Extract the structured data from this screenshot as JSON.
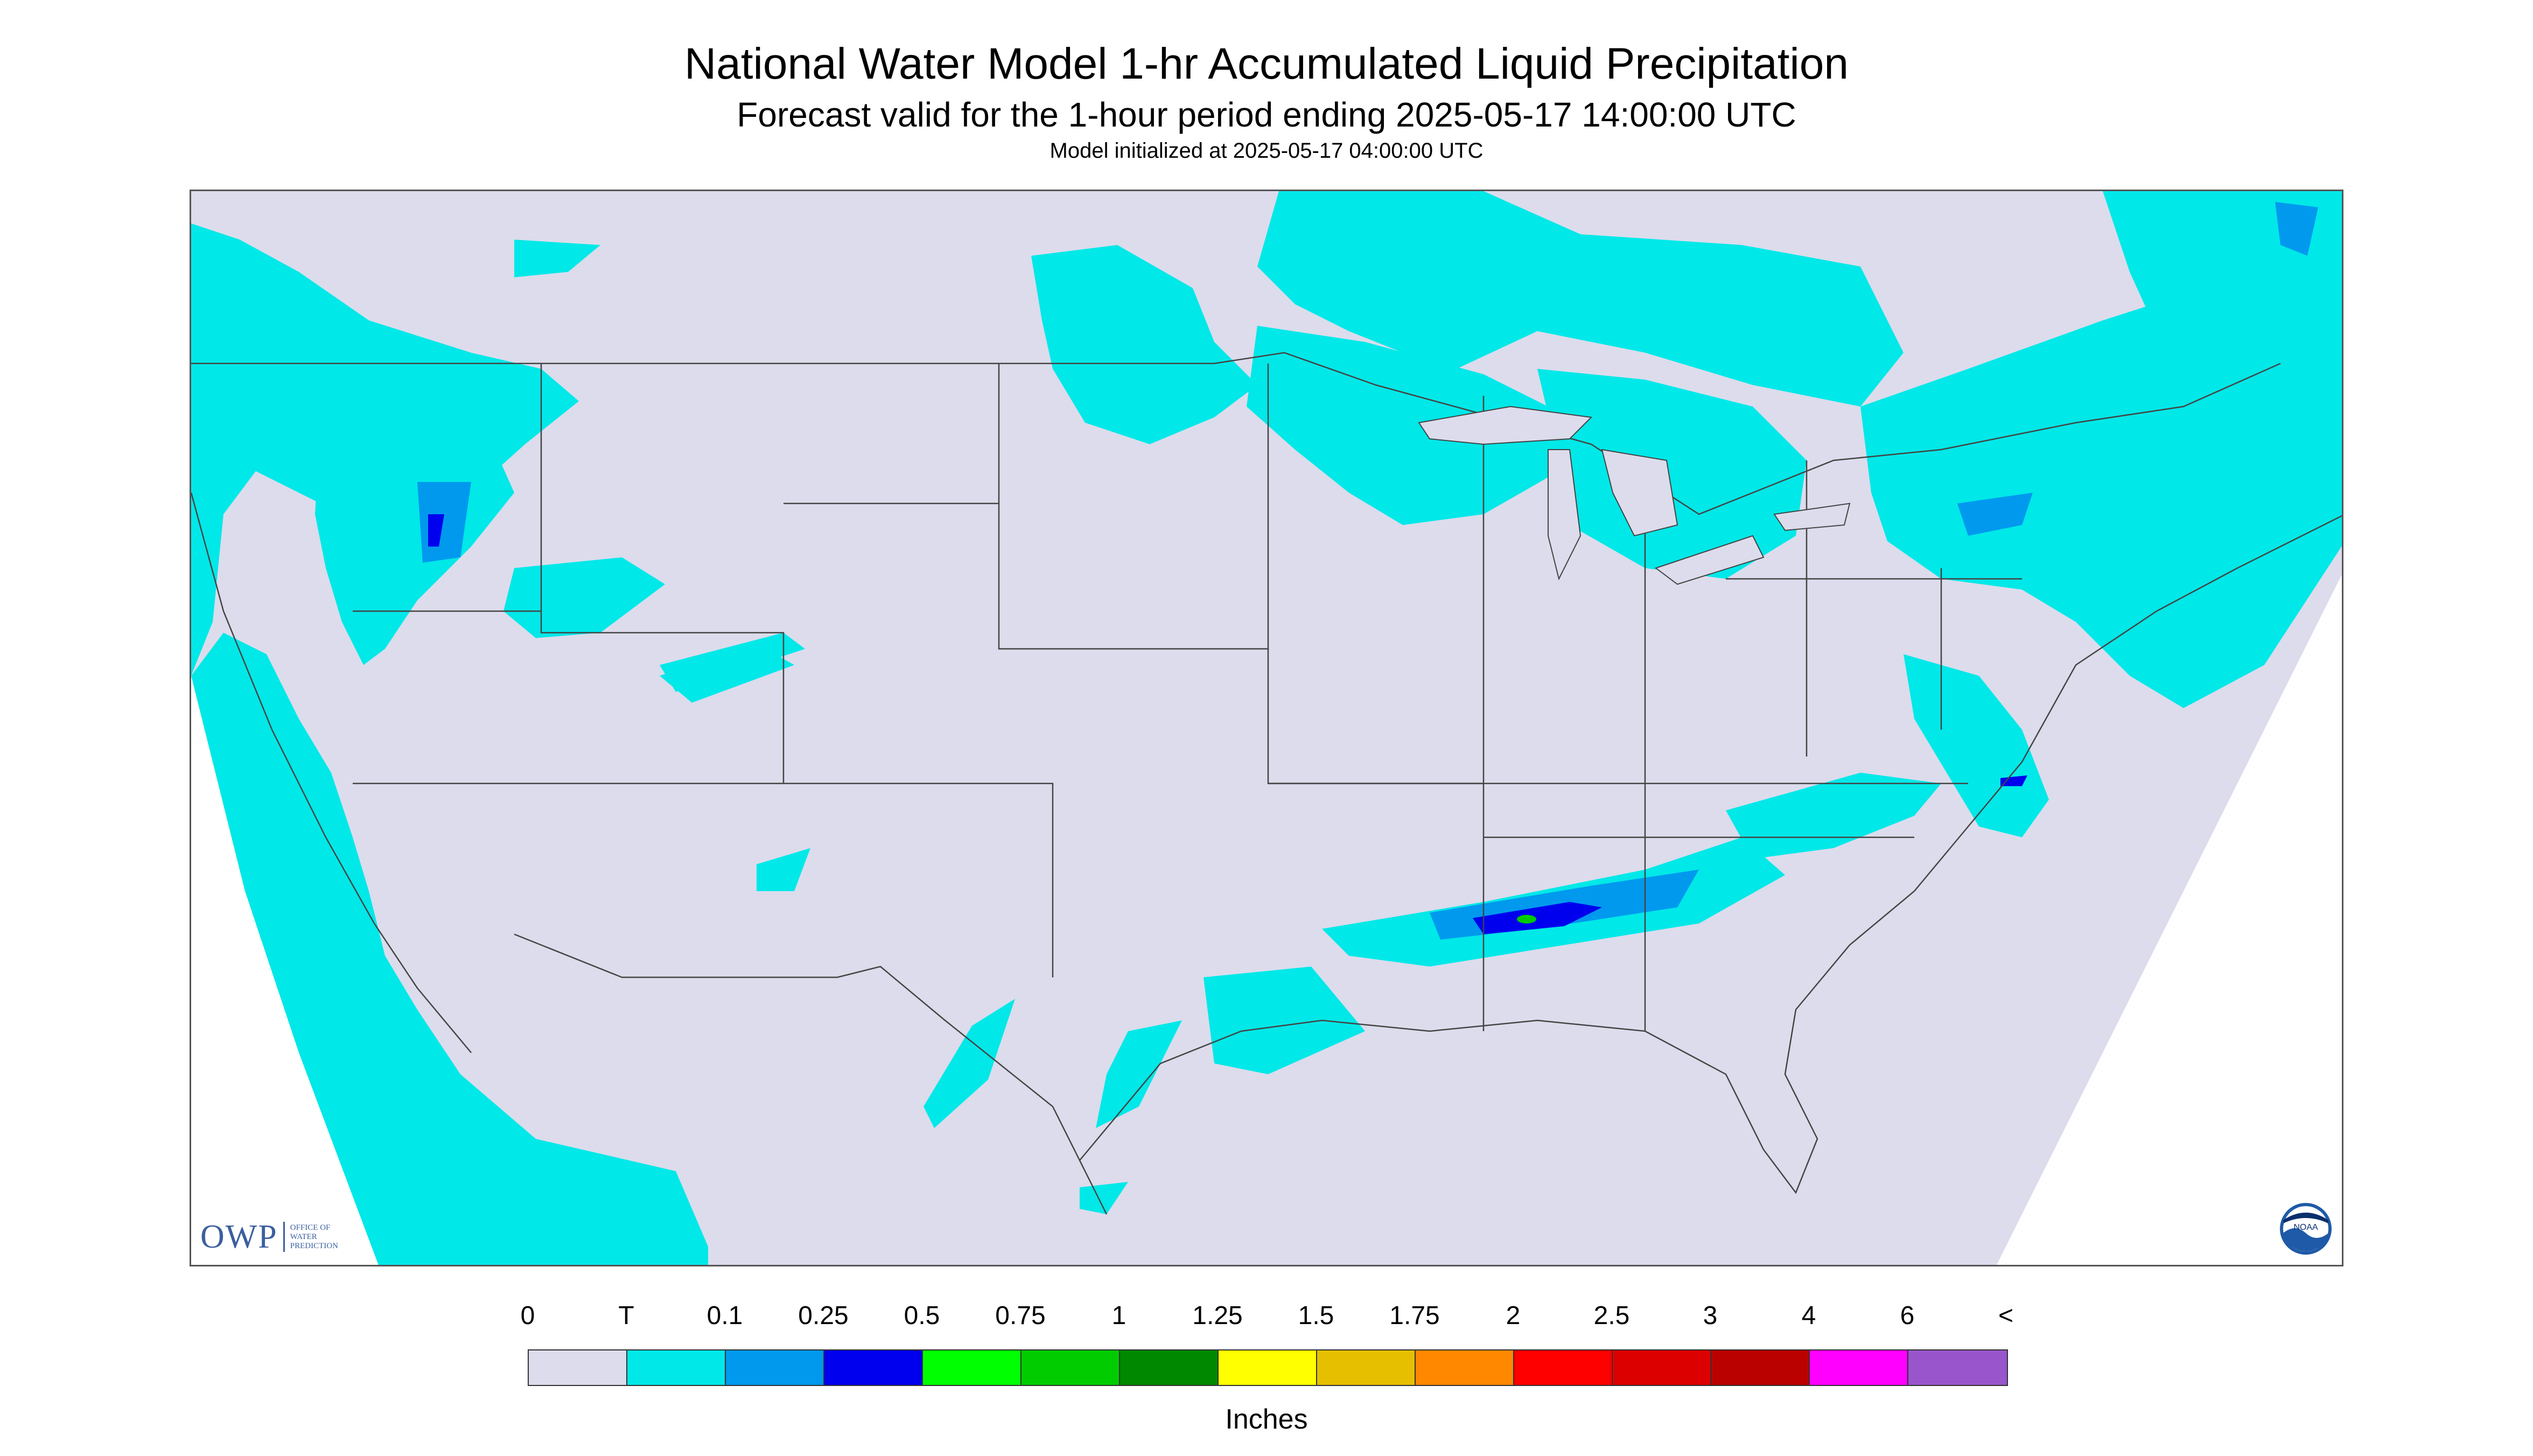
{
  "title": "National Water Model 1-hr Accumulated Liquid Precipitation",
  "subtitle": "Forecast valid for the 1-hour period ending 2025-05-17 14:00:00 UTC",
  "init_line": "Model initialized at 2025-05-17 04:00:00 UTC",
  "colors": {
    "background": "#dcdcec",
    "trace": "#00e8e8",
    "light": "#0099ee",
    "medium": "#0000ee",
    "green": "#00cc00",
    "border_line": "#444444"
  },
  "logos": {
    "owp_mark": "OWP",
    "owp_text": "OFFICE OF WATER PREDICTION",
    "noaa_text": "NOAA"
  },
  "legend": {
    "labels": [
      "0",
      "T",
      "0.1",
      "0.25",
      "0.5",
      "0.75",
      "1",
      "1.25",
      "1.5",
      "1.75",
      "2",
      "2.5",
      "3",
      "4",
      "6",
      "<"
    ],
    "colors": [
      "#dcdcec",
      "#00e8e8",
      "#0099ee",
      "#0000ee",
      "#00ff00",
      "#00cc00",
      "#008800",
      "#ffff00",
      "#e6c000",
      "#ff8800",
      "#ff0000",
      "#dd0000",
      "#bb0000",
      "#ff00ff",
      "#9955cc"
    ],
    "units": "Inches"
  }
}
